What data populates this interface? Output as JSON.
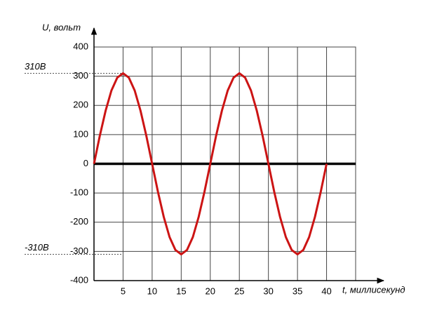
{
  "chart_data": {
    "type": "line",
    "y_label": "U, вольт",
    "x_label": "t, миллисекунд",
    "x": [
      0,
      1,
      2,
      3,
      4,
      5,
      6,
      7,
      8,
      9,
      10,
      11,
      12,
      13,
      14,
      15,
      16,
      17,
      18,
      19,
      20,
      21,
      22,
      23,
      24,
      25,
      26,
      27,
      28,
      29,
      30,
      31,
      32,
      33,
      34,
      35,
      36,
      37,
      38,
      39,
      40
    ],
    "series": [
      {
        "color": "#cc1414",
        "values": [
          0,
          96,
          182,
          251,
          295,
          310,
          295,
          251,
          182,
          96,
          0,
          -96,
          -182,
          -251,
          -295,
          -310,
          -295,
          -251,
          -182,
          -96,
          0,
          96,
          182,
          251,
          295,
          310,
          295,
          251,
          182,
          96,
          0,
          -96,
          -182,
          -251,
          -295,
          -310,
          -295,
          -251,
          -182,
          -96,
          0
        ]
      }
    ],
    "xlim": [
      0,
      45
    ],
    "xticks": [
      5,
      10,
      15,
      20,
      25,
      30,
      35,
      40
    ],
    "ylim": [
      -400,
      400
    ],
    "yticks": [
      -400,
      -300,
      -200,
      -100,
      0,
      100,
      200,
      300,
      400
    ],
    "grid": true,
    "annotations": [
      {
        "value": 310,
        "label": "310В"
      },
      {
        "value": -310,
        "label": "-310В"
      }
    ]
  }
}
